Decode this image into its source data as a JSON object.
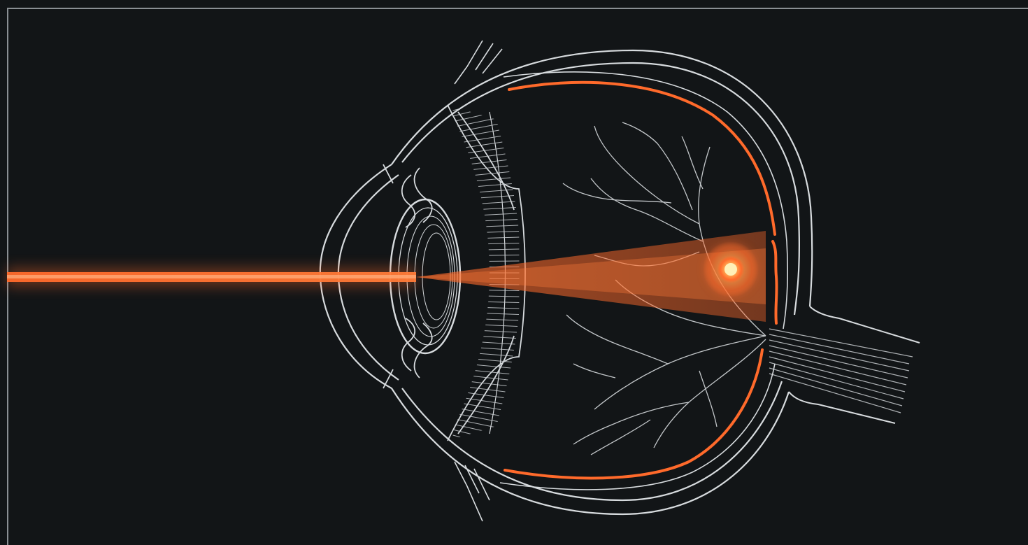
{
  "diagram": {
    "colors": {
      "background": "#121517",
      "frame": "#8a8f93",
      "line": "#d7dbde",
      "accent": "#ff6a2b",
      "glow": "#ffb15a"
    },
    "elements": [
      "laser-beam-icon",
      "cornea",
      "iris",
      "lens",
      "ciliary-body",
      "sclera",
      "choroid",
      "retina",
      "retinal-blood-vessels",
      "optic-nerve",
      "laser-cone",
      "focal-spot-icon"
    ]
  }
}
